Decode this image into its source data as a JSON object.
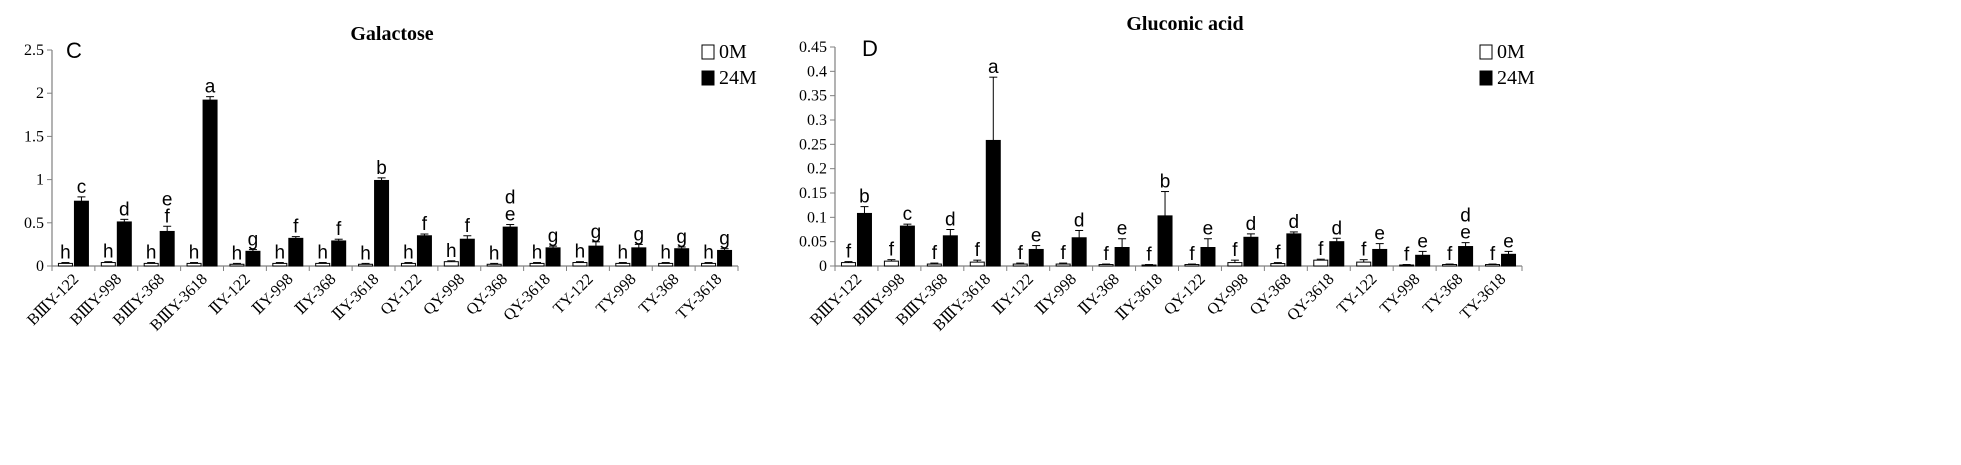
{
  "chart_data": [
    {
      "type": "bar",
      "panel_letter": "C",
      "title": "Galactose",
      "categories": [
        "BⅢY-122",
        "BⅢY-998",
        "BⅢY-368",
        "BⅢY-3618",
        "ⅡY-122",
        "ⅡY-998",
        "ⅡY-368",
        "ⅡY-3618",
        "QY-122",
        "QY-998",
        "QY-368",
        "QY-3618",
        "TY-122",
        "TY-998",
        "TY-368",
        "TY-3618"
      ],
      "series": [
        {
          "name": "0M",
          "fill": "#ffffff",
          "values": [
            0.03,
            0.04,
            0.03,
            0.03,
            0.02,
            0.03,
            0.03,
            0.02,
            0.03,
            0.05,
            0.02,
            0.03,
            0.04,
            0.03,
            0.03,
            0.03
          ],
          "errors": [
            0.01,
            0.01,
            0.01,
            0.01,
            0.01,
            0.01,
            0.01,
            0.01,
            0.01,
            0.01,
            0.01,
            0.01,
            0.01,
            0.01,
            0.01,
            0.01
          ],
          "letters": [
            "h",
            "h",
            "h",
            "h",
            "h",
            "h",
            "h",
            "h",
            "h",
            "h",
            "h",
            "h",
            "h",
            "h",
            "h",
            "h"
          ]
        },
        {
          "name": "24M",
          "fill": "#000000",
          "values": [
            0.75,
            0.51,
            0.4,
            1.92,
            0.17,
            0.32,
            0.29,
            0.99,
            0.35,
            0.31,
            0.45,
            0.21,
            0.23,
            0.21,
            0.2,
            0.18
          ],
          "errors": [
            0.05,
            0.03,
            0.06,
            0.04,
            0.02,
            0.02,
            0.02,
            0.03,
            0.02,
            0.04,
            0.03,
            0.02,
            0.05,
            0.04,
            0.02,
            0.02
          ],
          "letters": [
            "c",
            "d",
            "e\nf",
            "a",
            "g",
            "f",
            "f",
            "b",
            "f",
            "f",
            "d\ne",
            "g",
            "g",
            "g",
            "g",
            "g"
          ]
        }
      ],
      "ylim": [
        0,
        2.5
      ],
      "yticks": [
        "0",
        "0.5",
        "1",
        "1.5",
        "2",
        "2.5"
      ],
      "legend": "top-right",
      "grid": false
    },
    {
      "type": "bar",
      "panel_letter": "D",
      "title": "Gluconic acid",
      "categories": [
        "BⅢY-122",
        "BⅢY-998",
        "BⅢY-368",
        "BⅢY-3618",
        "ⅡY-122",
        "ⅡY-998",
        "ⅡY-368",
        "ⅡY-3618",
        "QY-122",
        "QY-998",
        "QY-368",
        "QY-3618",
        "TY-122",
        "TY-998",
        "TY-368",
        "TY-3618"
      ],
      "series": [
        {
          "name": "0M",
          "fill": "#ffffff",
          "values": [
            0.007,
            0.01,
            0.004,
            0.008,
            0.004,
            0.004,
            0.003,
            0.002,
            0.003,
            0.007,
            0.005,
            0.012,
            0.008,
            0.002,
            0.003,
            0.003
          ],
          "errors": [
            0.002,
            0.003,
            0.002,
            0.004,
            0.002,
            0.002,
            0.001,
            0.001,
            0.001,
            0.005,
            0.002,
            0.002,
            0.005,
            0.001,
            0.001,
            0.001
          ],
          "letters": [
            "f",
            "f",
            "f",
            "f",
            "f",
            "f",
            "f",
            "f",
            "f",
            "f",
            "f",
            "f",
            "f",
            "f",
            "f",
            "f"
          ]
        },
        {
          "name": "24M",
          "fill": "#000000",
          "values": [
            0.108,
            0.082,
            0.062,
            0.258,
            0.034,
            0.058,
            0.038,
            0.103,
            0.038,
            0.059,
            0.066,
            0.05,
            0.034,
            0.022,
            0.04,
            0.024
          ],
          "errors": [
            0.014,
            0.004,
            0.013,
            0.13,
            0.008,
            0.015,
            0.018,
            0.05,
            0.018,
            0.007,
            0.004,
            0.007,
            0.012,
            0.008,
            0.008,
            0.006
          ],
          "letters": [
            "b",
            "c",
            "d",
            "a",
            "e",
            "d",
            "e",
            "b",
            "e",
            "d",
            "d",
            "d",
            "e",
            "e",
            "d\ne",
            "e"
          ]
        }
      ],
      "ylim": [
        0,
        0.45
      ],
      "yticks": [
        "0",
        "0.05",
        "0.1",
        "0.15",
        "0.2",
        "0.25",
        "0.3",
        "0.35",
        "0.4",
        "0.45"
      ],
      "legend": "top-right",
      "grid": false
    }
  ]
}
